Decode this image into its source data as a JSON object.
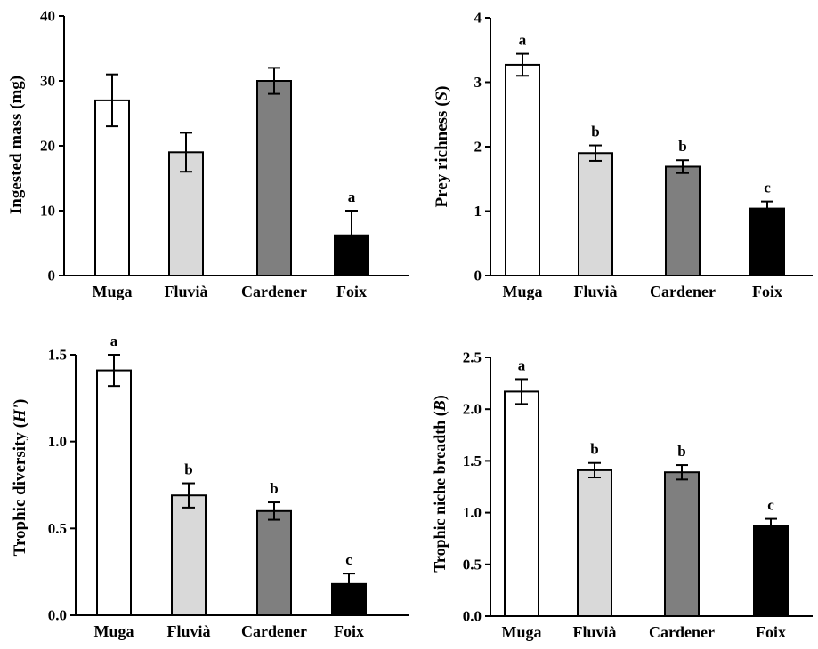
{
  "figure": {
    "panels": [
      "ingested",
      "richness",
      "diversity",
      "breadth"
    ]
  },
  "chart_data": [
    {
      "id": "ingested",
      "type": "bar",
      "categories": [
        "Muga",
        "Fluvià",
        "Cardener",
        "Foix"
      ],
      "values": [
        27,
        19,
        30,
        6.2
      ],
      "errors": [
        4,
        3,
        2,
        3.8
      ],
      "letters": [
        "",
        "",
        "",
        "a"
      ],
      "colors": [
        "#ffffff",
        "#d9d9d9",
        "#7f7f7f",
        "#000000"
      ],
      "ylabel": "Ingested mass (mg)",
      "ylabel_italic": "",
      "ylabel_after": "",
      "ylim": [
        0,
        40
      ],
      "yticks": [
        0,
        10,
        20,
        30,
        40
      ],
      "yticklabels": [
        "0",
        "10",
        "20",
        "30",
        "40"
      ],
      "grid": false
    },
    {
      "id": "richness",
      "type": "bar",
      "categories": [
        "Muga",
        "Fluvià",
        "Cardener",
        "Foix"
      ],
      "values": [
        3.27,
        1.9,
        1.69,
        1.04
      ],
      "errors": [
        0.17,
        0.12,
        0.1,
        0.11
      ],
      "letters": [
        "a",
        "b",
        "b",
        "c"
      ],
      "colors": [
        "#ffffff",
        "#d9d9d9",
        "#7f7f7f",
        "#000000"
      ],
      "ylabel": "Prey richness (",
      "ylabel_italic": "S",
      "ylabel_after": ")",
      "ylim": [
        0,
        4
      ],
      "yticks": [
        0,
        1,
        2,
        3,
        4
      ],
      "yticklabels": [
        "0",
        "1",
        "2",
        "3",
        "4"
      ],
      "grid": false
    },
    {
      "id": "diversity",
      "type": "bar",
      "categories": [
        "Muga",
        "Fluvià",
        "Cardener",
        "Foix"
      ],
      "values": [
        1.41,
        0.69,
        0.6,
        0.18
      ],
      "errors": [
        0.09,
        0.07,
        0.05,
        0.06
      ],
      "letters": [
        "a",
        "b",
        "b",
        "c"
      ],
      "colors": [
        "#ffffff",
        "#d9d9d9",
        "#7f7f7f",
        "#000000"
      ],
      "ylabel": "Trophic diversity (",
      "ylabel_italic": "H'",
      "ylabel_after": ")",
      "ylim": [
        0,
        1.5
      ],
      "yticks": [
        0,
        0.5,
        1.0,
        1.5
      ],
      "yticklabels": [
        "0.0",
        "0.5",
        "1.0",
        "1.5"
      ],
      "grid": false
    },
    {
      "id": "breadth",
      "type": "bar",
      "categories": [
        "Muga",
        "Fluvià",
        "Cardener",
        "Foix"
      ],
      "values": [
        2.17,
        1.41,
        1.39,
        0.87
      ],
      "errors": [
        0.12,
        0.07,
        0.07,
        0.07
      ],
      "letters": [
        "a",
        "b",
        "b",
        "c"
      ],
      "colors": [
        "#ffffff",
        "#d9d9d9",
        "#7f7f7f",
        "#000000"
      ],
      "ylabel": "Trophic niche breadth (",
      "ylabel_italic": "B",
      "ylabel_after": ")",
      "ylim": [
        0,
        2.5
      ],
      "yticks": [
        0,
        0.5,
        1.0,
        1.5,
        2.0,
        2.5
      ],
      "yticklabels": [
        "0.0",
        "0.5",
        "1.0",
        "1.5",
        "2.0",
        "2.5"
      ],
      "grid": false
    }
  ]
}
